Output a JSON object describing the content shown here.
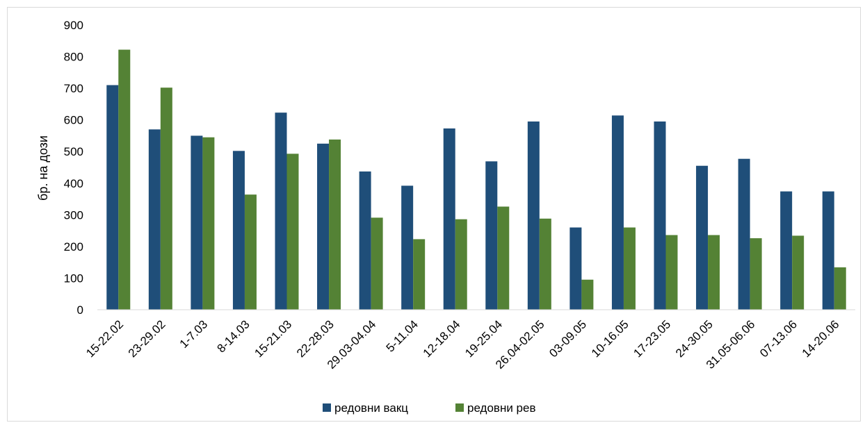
{
  "chart_data": {
    "type": "bar",
    "title": "",
    "xlabel": "",
    "ylabel": "бр. на дози",
    "ylim": [
      0,
      900
    ],
    "yticks": [
      0,
      100,
      200,
      300,
      400,
      500,
      600,
      700,
      800,
      900
    ],
    "grid": false,
    "legend_position": "bottom",
    "categories": [
      "15-22.02",
      "23-29.02",
      "1-7.03",
      "8-14.03",
      "15-21.03",
      "22-28.03",
      "29.03-04.04",
      "5-11.04",
      "12-18.04",
      "19-25.04",
      "26.04-02.05",
      "03-09.05",
      "10-16.05",
      "17-23.05",
      "24-30.05",
      "31.05-06.06",
      "07-13.06",
      "14-20.06"
    ],
    "series": [
      {
        "name": "редовни вакц",
        "color": "#1f4e79",
        "values": [
          710,
          570,
          550,
          502,
          623,
          525,
          437,
          392,
          573,
          469,
          595,
          260,
          614,
          595,
          455,
          477,
          374,
          374
        ]
      },
      {
        "name": "редовни рев",
        "color": "#548235",
        "values": [
          822,
          702,
          545,
          364,
          493,
          538,
          291,
          223,
          286,
          326,
          288,
          95,
          260,
          236,
          236,
          226,
          234,
          134
        ]
      }
    ]
  }
}
